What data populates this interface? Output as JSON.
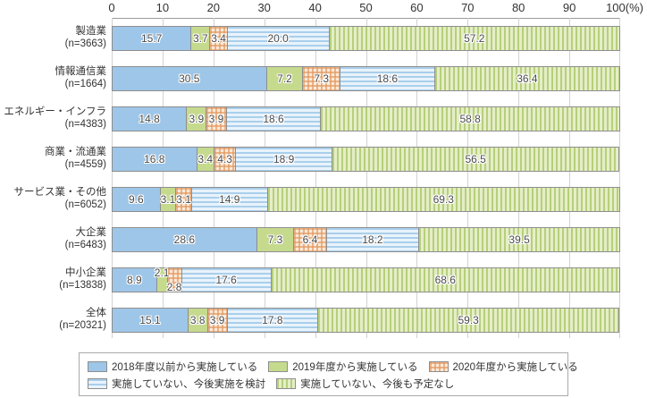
{
  "chart_data": {
    "type": "bar",
    "orientation": "horizontal-stacked",
    "unit": "%",
    "xlim": [
      0,
      100
    ],
    "x_tick_labels": [
      "0",
      "10",
      "20",
      "30",
      "40",
      "50",
      "60",
      "70",
      "80",
      "90",
      "100(%)"
    ],
    "grid": true,
    "legend_position": "bottom",
    "categories": [
      {
        "label": "製造業",
        "n": "(n=3663)"
      },
      {
        "label": "情報通信業",
        "n": "(n=1664)"
      },
      {
        "label": "エネルギー・インフラ",
        "n": "(n=4383)"
      },
      {
        "label": "商業・流通業",
        "n": "(n=4559)"
      },
      {
        "label": "サービス業・その他",
        "n": "(n=6052)"
      },
      {
        "label": "大企業",
        "n": "(n=6483)"
      },
      {
        "label": "中小企業",
        "n": "(n=13838)"
      },
      {
        "label": "全体",
        "n": "(n=20321)"
      }
    ],
    "series": [
      {
        "name": "2018年度以前から実施している",
        "pattern": "blue-solid",
        "color": "#9ec6e8",
        "values": [
          15.7,
          30.5,
          14.8,
          16.8,
          9.6,
          28.6,
          8.9,
          15.1
        ]
      },
      {
        "name": "2019年度から実施している",
        "pattern": "green-solid",
        "color": "#c6da8e",
        "values": [
          3.7,
          7.2,
          3.9,
          3.4,
          3.1,
          7.3,
          2.1,
          3.8
        ]
      },
      {
        "name": "2020年度から実施している",
        "pattern": "orange-check",
        "color": "#e2965c",
        "values": [
          3.4,
          7.3,
          3.9,
          4.3,
          3.1,
          6.4,
          2.8,
          3.9
        ]
      },
      {
        "name": "実施していない、今後実施を検討",
        "pattern": "blue-hstripe",
        "color": "#a9cfec",
        "values": [
          20.0,
          18.6,
          18.6,
          18.9,
          14.9,
          18.2,
          17.6,
          17.8
        ]
      },
      {
        "name": "実施していない、今後も予定なし",
        "pattern": "green-vstripe",
        "color": "#b6cf7c",
        "values": [
          57.2,
          36.4,
          58.8,
          56.5,
          69.3,
          39.5,
          68.6,
          59.3
        ]
      }
    ],
    "legend_rows": [
      [
        0,
        1,
        2
      ],
      [
        3,
        4
      ]
    ]
  }
}
